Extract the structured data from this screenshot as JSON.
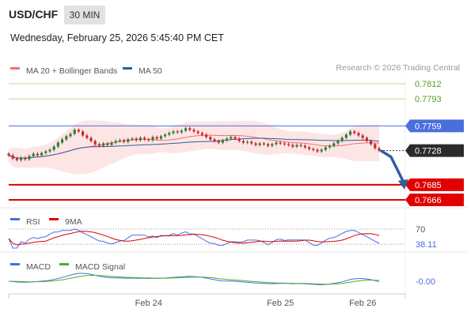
{
  "header": {
    "pair": "USD/CHF",
    "timeframe": "30 MIN",
    "timestamp": "Wednesday, February 25, 2026 5:45:40 PM CET"
  },
  "legend": {
    "ma20_label": "MA 20 + Bollinger Bands",
    "ma50_label": "MA 50",
    "credit": "Research © 2026 Trading Central"
  },
  "colors": {
    "ma20": "#f07070",
    "ma50": "#2f5f9f",
    "bands_fill": "#fde0e0",
    "resistance_green": "#bcd89a",
    "resistance_blue": "#4a6fdc",
    "support_red": "#e00000",
    "up_candle": "#2e7d32",
    "down_candle": "#c62828",
    "arrow": "#2f5f9f",
    "rsi": "#4a6fdc",
    "rsi_ma": "#e00000",
    "macd": "#4a6fdc",
    "macd_signal": "#4caf2a"
  },
  "chart_data": {
    "type": "candlestick",
    "price_axis_range": [
      0.7656,
      0.7822
    ],
    "levels": [
      {
        "value": 0.7812,
        "label": "0.7812",
        "style": "resistance-green"
      },
      {
        "value": 0.7793,
        "label": "0.7793",
        "style": "resistance-green"
      },
      {
        "value": 0.7759,
        "label": "0.7759",
        "style": "pivot-blue"
      },
      {
        "value": 0.7728,
        "label": "0.7728",
        "style": "last-price"
      },
      {
        "value": 0.7685,
        "label": "0.7685",
        "style": "support-red"
      },
      {
        "value": 0.7666,
        "label": "0.7666",
        "style": "support-red"
      }
    ],
    "forecast": {
      "from": 0.7728,
      "via": 0.772,
      "to": 0.7682
    },
    "x_ticks": [
      "Feb 24",
      "Feb 25",
      "Feb 26"
    ],
    "close": [
      0.7722,
      0.7718,
      0.7716,
      0.7719,
      0.7717,
      0.7721,
      0.7724,
      0.7722,
      0.7725,
      0.7727,
      0.7729,
      0.7733,
      0.7738,
      0.7742,
      0.7746,
      0.7749,
      0.7754,
      0.7752,
      0.7747,
      0.7744,
      0.774,
      0.7736,
      0.7734,
      0.7737,
      0.7735,
      0.7738,
      0.774,
      0.7741,
      0.7739,
      0.7742,
      0.7743,
      0.7741,
      0.7744,
      0.7742,
      0.7741,
      0.7745,
      0.7743,
      0.7746,
      0.7748,
      0.775,
      0.7752,
      0.7751,
      0.7753,
      0.7756,
      0.7754,
      0.7752,
      0.775,
      0.7748,
      0.7745,
      0.7742,
      0.774,
      0.7738,
      0.7741,
      0.7743,
      0.7745,
      0.7743,
      0.774,
      0.7738,
      0.7739,
      0.7737,
      0.7735,
      0.7737,
      0.7736,
      0.7734,
      0.7736,
      0.7738,
      0.7737,
      0.7736,
      0.7735,
      0.7733,
      0.7735,
      0.7734,
      0.7732,
      0.773,
      0.7729,
      0.7727,
      0.7729,
      0.7732,
      0.7734,
      0.7737,
      0.774,
      0.7744,
      0.7748,
      0.7752,
      0.775,
      0.7747,
      0.7744,
      0.774,
      0.7736,
      0.7731,
      0.7728
    ],
    "x_tick_index": [
      34,
      66,
      86
    ],
    "rsi": {
      "label": "RSI",
      "ma_label": "9MA",
      "level_label": "70",
      "value_label": "38.11",
      "range": [
        30,
        70
      ],
      "value": 38.11
    },
    "macd": {
      "label": "MACD",
      "signal_label": "MACD Signal",
      "value_label": "-0.00",
      "value": 0.0
    }
  }
}
